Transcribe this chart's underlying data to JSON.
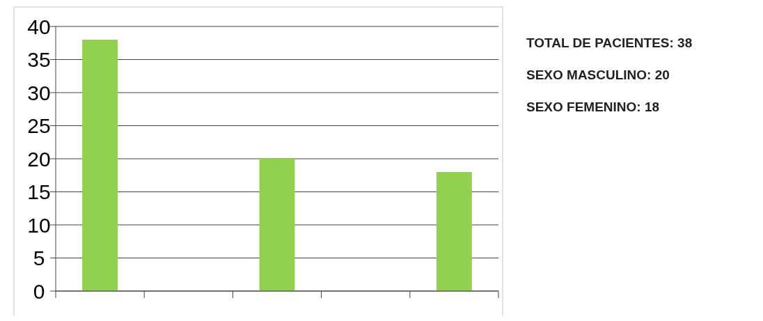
{
  "chart_data": {
    "type": "bar",
    "categories": [
      null,
      null,
      null,
      null,
      null
    ],
    "values": [
      38,
      null,
      20,
      null,
      18
    ],
    "color": "#92d050",
    "ylim": [
      0,
      40
    ],
    "yticks": [
      0,
      5,
      10,
      15,
      20,
      25,
      30,
      35,
      40
    ],
    "grid": "y",
    "annotations": [
      "TOTAL DE PACIENTES: 38",
      "SEXO MASCULINO: 20",
      "SEXO FEMENINO: 18"
    ]
  }
}
